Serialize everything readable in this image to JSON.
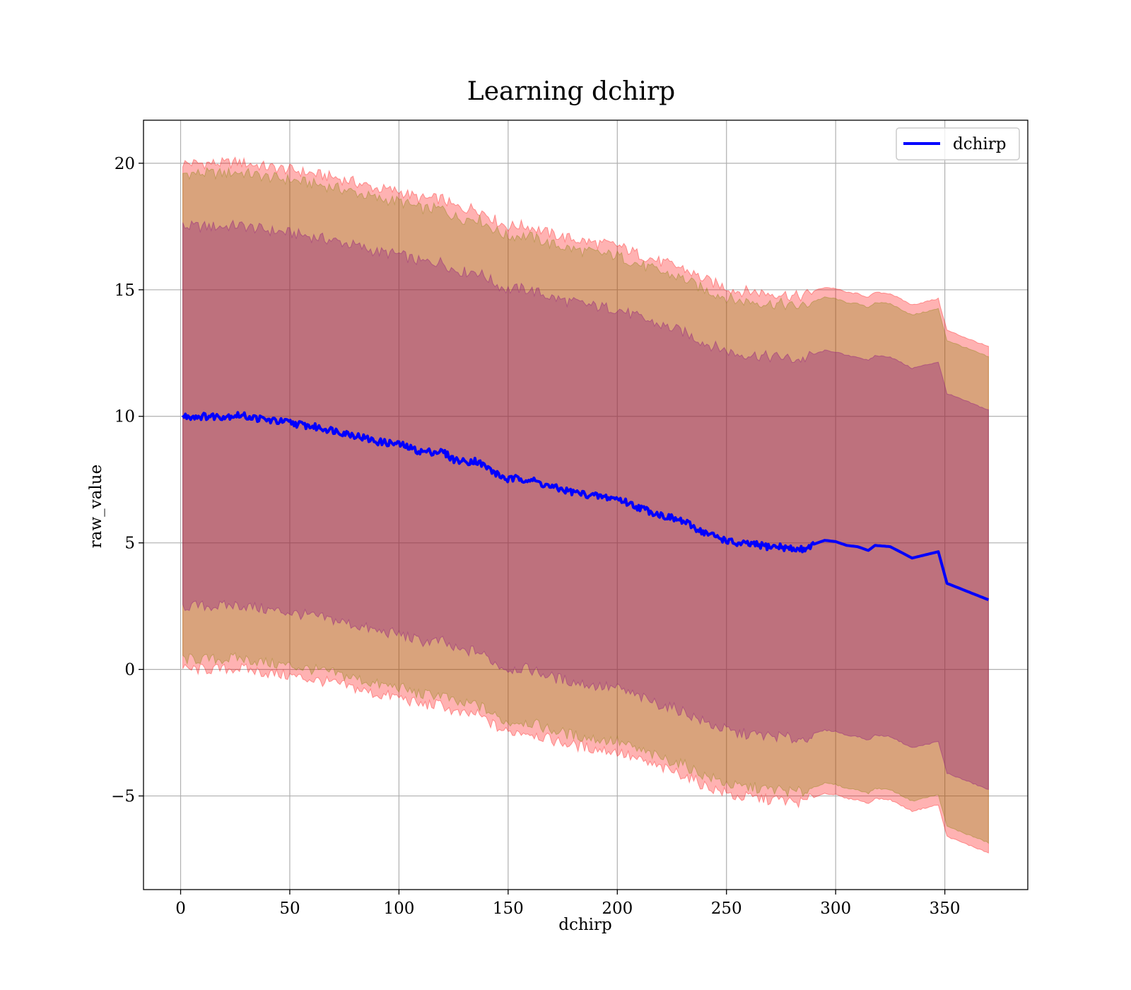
{
  "chart_data": {
    "type": "line",
    "title": "Learning dchirp",
    "xlabel": "dchirp",
    "ylabel": "raw_value",
    "xlim": [
      -17,
      388
    ],
    "ylim": [
      -8.7,
      21.7
    ],
    "x_ticks": [
      0,
      50,
      100,
      150,
      200,
      250,
      300,
      350
    ],
    "y_ticks": [
      -5,
      0,
      5,
      10,
      15,
      20
    ],
    "y_tick_labels": [
      "−5",
      "0",
      "5",
      "10",
      "15",
      "20"
    ],
    "grid": true,
    "legend_position": "top-right",
    "series": [
      {
        "name": "dchirp",
        "color": "#0000ff",
        "x": [
          1,
          10,
          20,
          26,
          30,
          40,
          50,
          60,
          70,
          80,
          90,
          100,
          110,
          115,
          120,
          125,
          130,
          135,
          140,
          145,
          150,
          155,
          160,
          170,
          180,
          190,
          200,
          210,
          220,
          230,
          240,
          250,
          255,
          260,
          265,
          270,
          275,
          280,
          285,
          290,
          295,
          300,
          305,
          310,
          315,
          318,
          325,
          335,
          347,
          351,
          370
        ],
        "y": [
          10.0,
          10.0,
          10.0,
          10.05,
          10.0,
          9.85,
          9.75,
          9.6,
          9.45,
          9.25,
          9.0,
          8.9,
          8.6,
          8.6,
          8.6,
          8.3,
          8.2,
          8.25,
          8.0,
          7.7,
          7.5,
          7.55,
          7.5,
          7.2,
          7.0,
          6.85,
          6.75,
          6.4,
          6.1,
          5.85,
          5.4,
          5.1,
          4.95,
          4.95,
          4.9,
          4.85,
          4.85,
          4.75,
          4.75,
          4.95,
          5.1,
          5.05,
          4.9,
          4.85,
          4.7,
          4.9,
          4.85,
          4.4,
          4.65,
          3.4,
          2.75
        ]
      }
    ],
    "bands": [
      {
        "label_shown": false,
        "color": "#ff0000",
        "opacity": 0.3,
        "half_width": 10.0,
        "half_width_end": 10.0
      },
      {
        "label_shown": false,
        "color": "#808000",
        "opacity": 0.3,
        "half_width": 9.6,
        "half_width_end": 9.6
      },
      {
        "label_shown": false,
        "color": "#800080",
        "opacity": 0.3,
        "half_width": 7.5,
        "half_width_end": 7.5
      }
    ]
  }
}
